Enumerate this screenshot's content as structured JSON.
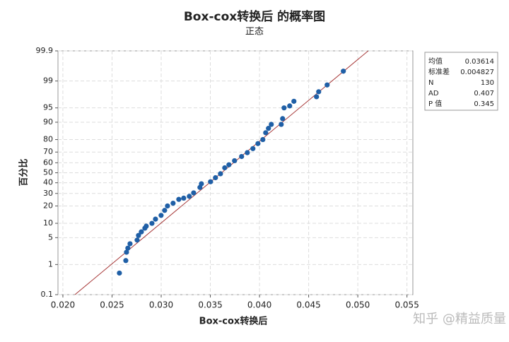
{
  "chart_data": {
    "type": "probability",
    "title": "Box-cox转换后 的概率图",
    "subtitle": "正态",
    "xlabel": "Box-cox转换后",
    "ylabel": "百分比",
    "xlim": [
      0.0195,
      0.0556
    ],
    "xticks": [
      {
        "value": 0.02,
        "label": "0.020"
      },
      0.025,
      {
        "value": 0.03,
        "label": "0.030"
      },
      0.035,
      {
        "value": 0.04,
        "label": "0.040"
      },
      0.045,
      {
        "value": 0.05,
        "label": "0.050"
      },
      0.055
    ],
    "ylim": [
      0.1,
      99.9
    ],
    "yticks": [
      0.1,
      1,
      5,
      10,
      20,
      30,
      40,
      50,
      60,
      70,
      80,
      90,
      95,
      99,
      99.9
    ],
    "grid": true,
    "series": [
      {
        "color": "#1f5fa6",
        "x": [
          0.02575,
          0.0264,
          0.02647,
          0.02661,
          0.02683,
          0.02755,
          0.02769,
          0.02798,
          0.02834,
          0.02848,
          0.02906,
          0.02942,
          0.02999,
          0.03035,
          0.03064,
          0.03121,
          0.03179,
          0.03229,
          0.03286,
          0.0333,
          0.03394,
          0.03409,
          0.03502,
          0.03552,
          0.03603,
          0.03646,
          0.03689,
          0.03746,
          0.03818,
          0.03876,
          0.03933,
          0.03984,
          0.04034,
          0.04063,
          0.04091,
          0.0412,
          0.04221,
          0.04235,
          0.0425,
          0.04307,
          0.0435,
          0.0458,
          0.04602,
          0.04688,
          0.04853
        ],
        "values": [
          0.55,
          1.3,
          2.2,
          2.8,
          3.6,
          4.4,
          5.6,
          6.7,
          8,
          8.8,
          10,
          12,
          14,
          17,
          20,
          22,
          25,
          26,
          27.5,
          30.5,
          35.5,
          39,
          41,
          45,
          49,
          55,
          58,
          62,
          66,
          69.5,
          73,
          77,
          80,
          84.5,
          87,
          89,
          89,
          91.5,
          95,
          95.5,
          96.5,
          97.3,
          98,
          98.7,
          99.5
        ]
      }
    ],
    "fit_color": "#a83a3a",
    "stats": {
      "labels": [
        "均值",
        "标准差",
        "N",
        "AD",
        "P 值"
      ],
      "values": [
        0.03614,
        0.004827,
        130,
        0.407,
        0.345
      ]
    },
    "watermark": "知乎 @精益质量"
  }
}
